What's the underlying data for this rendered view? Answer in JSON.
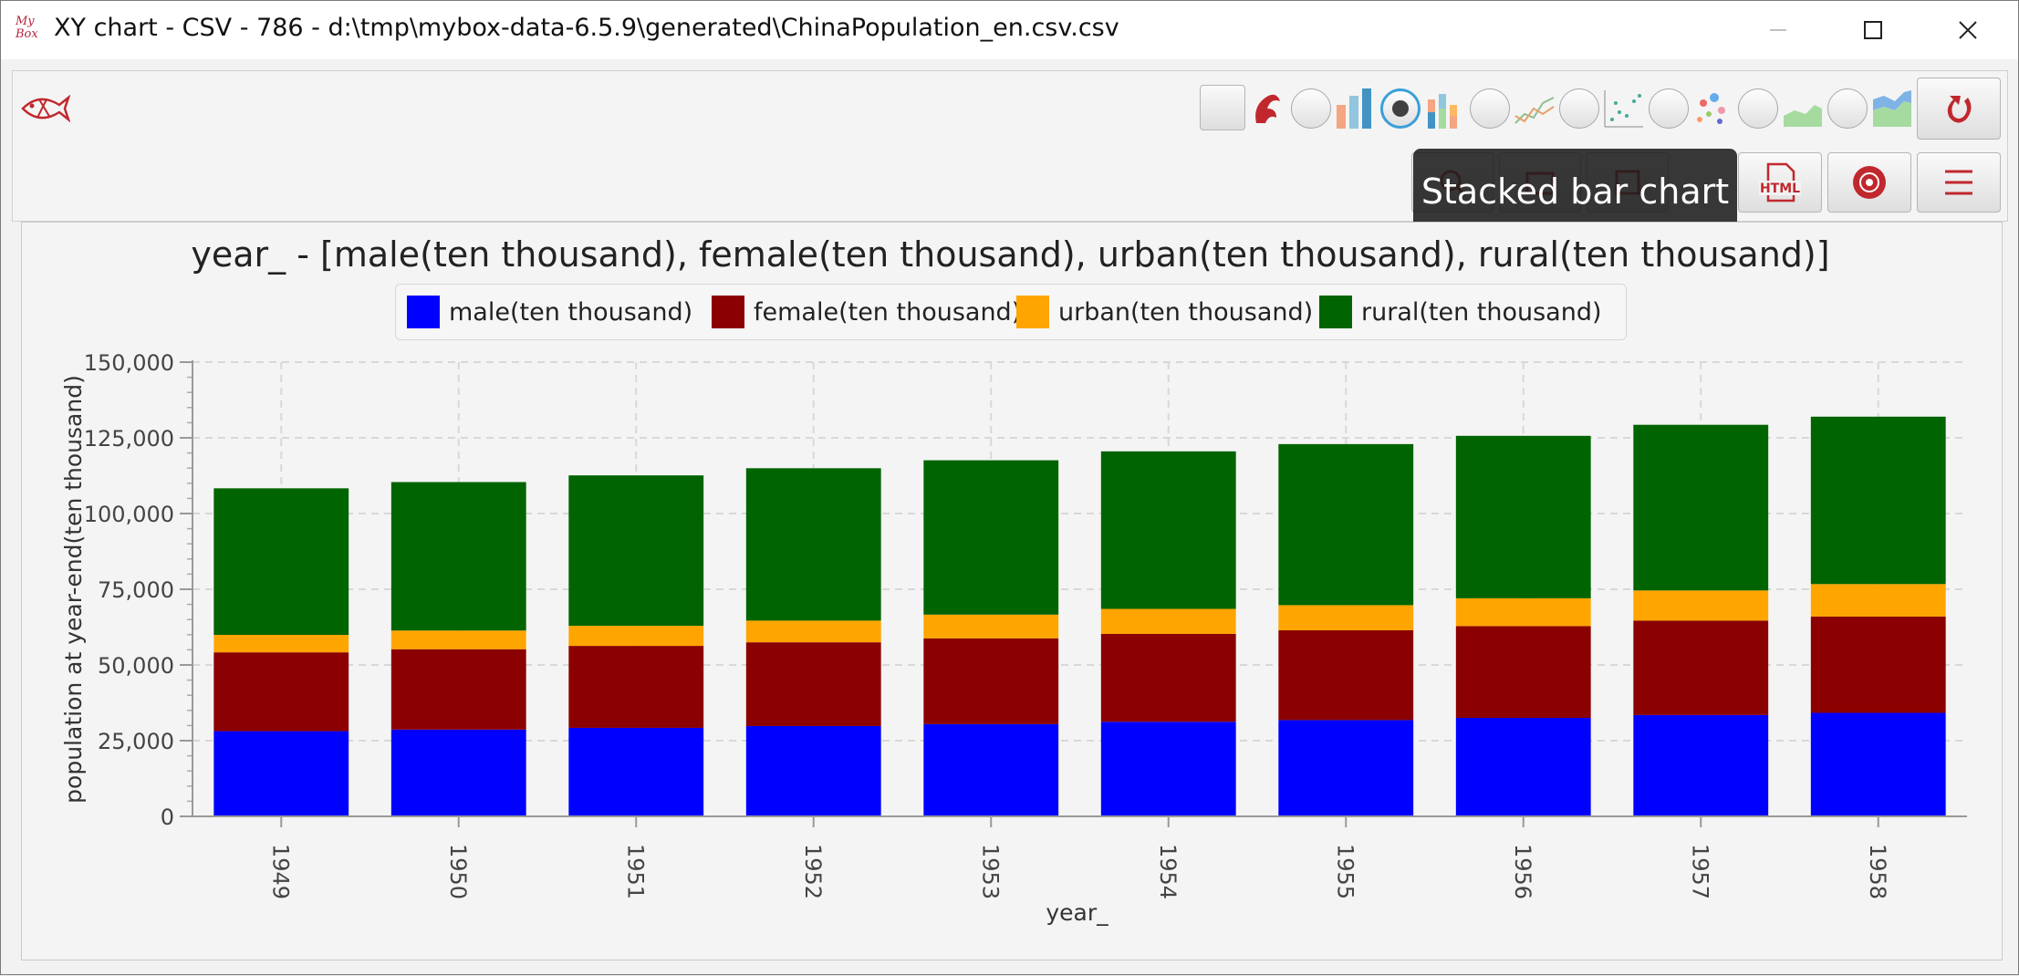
{
  "window": {
    "title": "XY chart - CSV - 786 - d:\\tmp\\mybox-data-6.5.9\\generated\\ChinaPopulation_en.csv.csv",
    "app_logo_text": "My Box"
  },
  "toolbar": {
    "chart_type_options": [
      {
        "name": "bar chart",
        "icon": "bar-chart-icon",
        "selected": false
      },
      {
        "name": "stacked bar chart",
        "icon": "stacked-bar-chart-icon",
        "selected": true
      },
      {
        "name": "line chart",
        "icon": "line-chart-icon",
        "selected": false
      },
      {
        "name": "scatter chart",
        "icon": "scatter-chart-icon",
        "selected": false
      },
      {
        "name": "bubble chart",
        "icon": "bubble-chart-icon",
        "selected": false
      },
      {
        "name": "area chart",
        "icon": "area-chart-icon",
        "selected": false
      },
      {
        "name": "stacked area chart",
        "icon": "stacked-area-chart-icon",
        "selected": false
      }
    ],
    "html_button_label": "HTML"
  },
  "tooltip": {
    "text": "Stacked bar chart"
  },
  "colors": {
    "male": "#0000ff",
    "female": "#8b0000",
    "urban": "#ffa500",
    "rural": "#006400",
    "accent": "#c0282d"
  },
  "chart_data": {
    "type": "bar",
    "stacked": true,
    "title": "year_ - [male(ten thousand), female(ten thousand), urban(ten thousand), rural(ten thousand)]",
    "xlabel": "year_",
    "ylabel": "population at year-end(ten thousand)",
    "categories": [
      "1949",
      "1950",
      "1951",
      "1952",
      "1953",
      "1954",
      "1955",
      "1956",
      "1957",
      "1958"
    ],
    "ylim": [
      0,
      150000
    ],
    "yticks": [
      0,
      25000,
      50000,
      75000,
      100000,
      125000,
      150000
    ],
    "ytick_labels": [
      "0",
      "25,000",
      "50,000",
      "75,000",
      "100,000",
      "125,000",
      "150,000"
    ],
    "grid": true,
    "legend_position": "top",
    "series": [
      {
        "name": "male(ten thousand)",
        "color": "#0000ff",
        "values": [
          28145,
          28669,
          29231,
          29833,
          30468,
          31242,
          31809,
          32536,
          33469,
          34195
        ]
      },
      {
        "name": "female(ten thousand)",
        "color": "#8b0000",
        "values": [
          26022,
          26527,
          27069,
          27649,
          28328,
          29024,
          29656,
          30292,
          31184,
          31799
        ]
      },
      {
        "name": "urban(ten thousand)",
        "color": "#ffa500",
        "values": [
          5765,
          6169,
          6632,
          7163,
          7826,
          8249,
          8285,
          9185,
          9949,
          10721
        ]
      },
      {
        "name": "rural(ten thousand)",
        "color": "#006400",
        "values": [
          48402,
          49027,
          49668,
          50319,
          50970,
          52017,
          53180,
          53643,
          54704,
          55273
        ]
      }
    ]
  }
}
